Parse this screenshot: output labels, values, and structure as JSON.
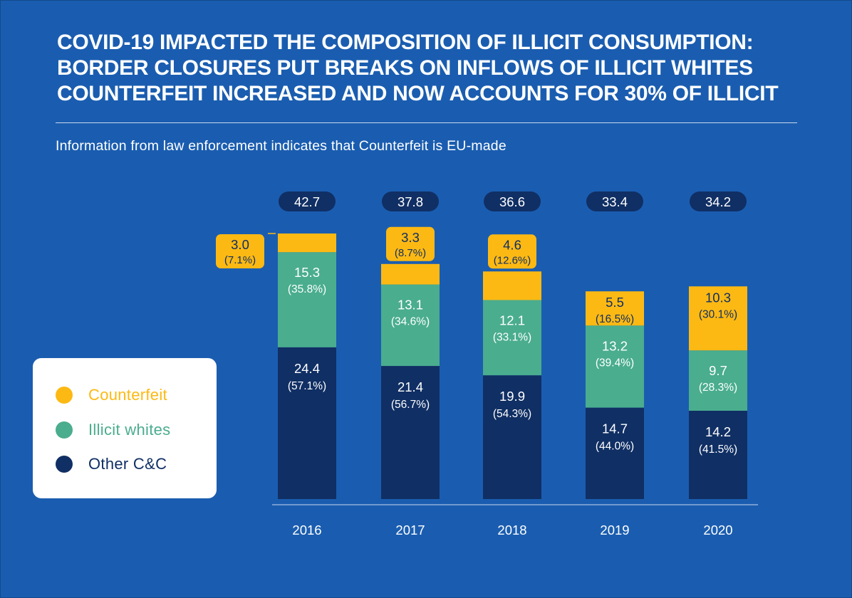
{
  "title_lines": [
    "COVID-19 IMPACTED THE COMPOSITION OF ILLICIT CONSUMPTION:",
    "BORDER CLOSURES PUT BREAKS ON INFLOWS OF ILLICIT WHITES",
    "COUNTERFEIT INCREASED AND NOW ACCOUNTS FOR 30% OF ILLICIT"
  ],
  "subtitle": "Information from law enforcement indicates that Counterfeit is EU-made",
  "legend": [
    {
      "label": "Counterfeit",
      "color": "#fdb913"
    },
    {
      "label": "Illicit whites",
      "color": "#4aad8e"
    },
    {
      "label": "Other C&C",
      "color": "#102f64"
    }
  ],
  "colors": {
    "background": "#1a5db0",
    "counterfeit": "#fdb913",
    "illicit_whites": "#4aad8e",
    "other_cc": "#102f64",
    "total_badge": "#102f64"
  },
  "chart_data": {
    "type": "bar",
    "stacked": true,
    "categories": [
      "2016",
      "2017",
      "2018",
      "2019",
      "2020"
    ],
    "totals": [
      "42.7",
      "37.8",
      "36.6",
      "33.4",
      "34.2"
    ],
    "series": [
      {
        "name": "Other C&C",
        "values": [
          24.4,
          21.4,
          19.9,
          14.7,
          14.2
        ],
        "labels": [
          "24.4",
          "21.4",
          "19.9",
          "14.7",
          "14.2"
        ],
        "shares": [
          "(57.1%)",
          "(56.7%)",
          "(54.3%)",
          "(44.0%)",
          "(41.5%)"
        ]
      },
      {
        "name": "Illicit whites",
        "values": [
          15.3,
          13.1,
          12.1,
          13.2,
          9.7
        ],
        "labels": [
          "15.3",
          "13.1",
          "12.1",
          "13.2",
          "9.7"
        ],
        "shares": [
          "(35.8%)",
          "(34.6%)",
          "(33.1%)",
          "(39.4%)",
          "(28.3%)"
        ]
      },
      {
        "name": "Counterfeit",
        "values": [
          3.0,
          3.3,
          4.6,
          5.5,
          10.3
        ],
        "labels": [
          "3.0",
          "3.3",
          "4.6",
          "5.5",
          "10.3"
        ],
        "shares": [
          "(7.1%)",
          "(8.7%)",
          "(12.6%)",
          "(16.5%)",
          "(30.1%)"
        ]
      }
    ],
    "ylim": [
      0,
      42.7
    ],
    "xlabel": "",
    "ylabel": "",
    "grid": false,
    "legend_position": "left"
  }
}
